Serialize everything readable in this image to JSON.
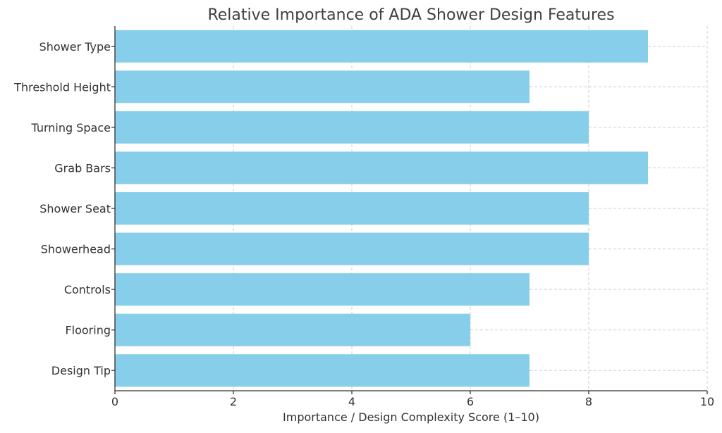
{
  "chart_data": {
    "type": "bar",
    "orientation": "horizontal",
    "title": "Relative Importance of ADA Shower Design Features",
    "xlabel": "Importance / Design Complexity Score (1–10)",
    "ylabel": "",
    "categories": [
      "Shower Type",
      "Threshold Height",
      "Turning Space",
      "Grab Bars",
      "Shower Seat",
      "Showerhead",
      "Controls",
      "Flooring",
      "Design Tip"
    ],
    "values": [
      9,
      7,
      8,
      9,
      8,
      8,
      7,
      6,
      7
    ],
    "xlim": [
      0,
      10
    ],
    "xticks": [
      "0",
      "2",
      "4",
      "6",
      "8",
      "10"
    ],
    "grid": true,
    "bar_color": "#87CEEB"
  }
}
